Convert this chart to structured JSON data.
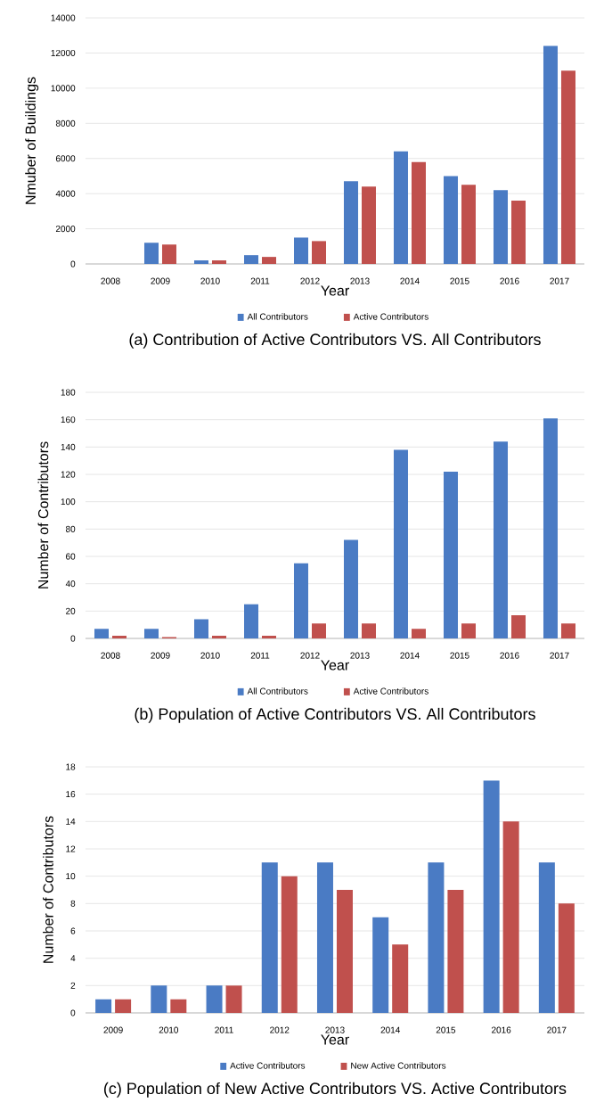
{
  "chart_data": [
    {
      "type": "bar",
      "title": "(a)  Contribution  of Active Contributors VS. All Contributors",
      "xlabel": "Year",
      "ylabel": "Nmuber of Buildings",
      "categories": [
        "2008",
        "2009",
        "2010",
        "2011",
        "2012",
        "2013",
        "2014",
        "2015",
        "2016",
        "2017"
      ],
      "series": [
        {
          "name": "All Contributors",
          "color": "#4a7bc4",
          "values": [
            0,
            1200,
            200,
            500,
            1500,
            4700,
            6400,
            5000,
            4200,
            12400
          ]
        },
        {
          "name": "Active Contributors",
          "color": "#c0504d",
          "values": [
            0,
            1100,
            200,
            400,
            1300,
            4400,
            5800,
            4500,
            3600,
            11000
          ]
        }
      ],
      "ylim": [
        0,
        14000
      ],
      "yticks": [
        0,
        2000,
        4000,
        6000,
        8000,
        10000,
        12000,
        14000
      ],
      "grid": "y",
      "legend": "bottom"
    },
    {
      "type": "bar",
      "title": "(b)  Population of Active Contributors VS. All Contributors",
      "xlabel": "Year",
      "ylabel": "Number of Contributors",
      "categories": [
        "2008",
        "2009",
        "2010",
        "2011",
        "2012",
        "2013",
        "2014",
        "2015",
        "2016",
        "2017"
      ],
      "series": [
        {
          "name": "All Contributors",
          "color": "#4a7bc4",
          "values": [
            7,
            7,
            14,
            25,
            55,
            72,
            138,
            122,
            144,
            161
          ]
        },
        {
          "name": "Active Contributors",
          "color": "#c0504d",
          "values": [
            2,
            1,
            2,
            2,
            11,
            11,
            7,
            11,
            17,
            11
          ]
        }
      ],
      "ylim": [
        0,
        180
      ],
      "yticks": [
        0,
        20,
        40,
        60,
        80,
        100,
        120,
        140,
        160,
        180
      ],
      "grid": "y",
      "legend": "bottom"
    },
    {
      "type": "bar",
      "title": "(c)  Population of New Active Contributors VS. Active Contributors",
      "xlabel": "Year",
      "ylabel": "Number of Contributors",
      "categories": [
        "2009",
        "2010",
        "2011",
        "2012",
        "2013",
        "2014",
        "2015",
        "2016",
        "2017"
      ],
      "series": [
        {
          "name": "Active Contributors",
          "color": "#4a7bc4",
          "values": [
            1,
            2,
            2,
            11,
            11,
            7,
            11,
            17,
            11
          ]
        },
        {
          "name": "New Active Contributors",
          "color": "#c0504d",
          "values": [
            1,
            1,
            2,
            10,
            9,
            5,
            9,
            14,
            8
          ]
        }
      ],
      "ylim": [
        0,
        18
      ],
      "yticks": [
        0,
        2,
        4,
        6,
        8,
        10,
        12,
        14,
        16,
        18
      ],
      "grid": "y",
      "legend": "bottom"
    }
  ]
}
